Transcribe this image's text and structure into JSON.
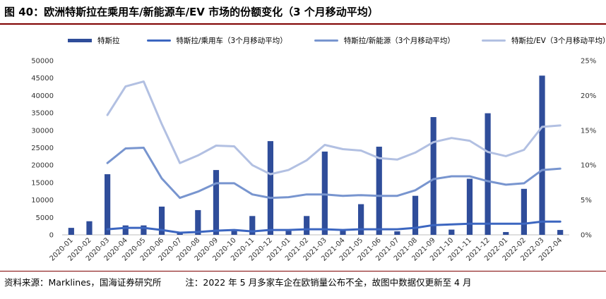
{
  "title": "图 40：欧洲特斯拉在乘用车/新能源车/EV 市场的份额变化（3 个月移动平均）",
  "source": "资料来源：Marklines，国海证券研究所",
  "note": "注：2022 年 5 月多家车企在欧销量公布不全，故图中数据仅更新至 4 月",
  "chart_data": {
    "type": "bar+line",
    "categories": [
      "2020-01",
      "2020-02",
      "2020-03",
      "2020-04",
      "2020-05",
      "2020-06",
      "2020-07",
      "2020-08",
      "2020-09",
      "2020-10",
      "2020-11",
      "2020-12",
      "2021-01",
      "2021-02",
      "2021-03",
      "2021-04",
      "2021-05",
      "2021-06",
      "2021-07",
      "2021-08",
      "2021-09",
      "2021-10",
      "2021-11",
      "2021-12",
      "2022-01",
      "2022-02",
      "2022-03",
      "2022-04"
    ],
    "ylim_left": [
      0,
      50000
    ],
    "yticks_left": [
      "0",
      "5000",
      "10000",
      "15000",
      "20000",
      "25000",
      "30000",
      "35000",
      "40000",
      "45000",
      "50000"
    ],
    "ylim_right": [
      0,
      25
    ],
    "yticks_right": [
      "0%",
      "5%",
      "10%",
      "15%",
      "20%",
      "25%"
    ],
    "legend_position": "top",
    "series": [
      {
        "name": "特斯拉",
        "kind": "bar",
        "axis": "left",
        "color": "#2f4d9a",
        "values": [
          2000,
          3900,
          17400,
          2700,
          2700,
          8100,
          800,
          7100,
          18600,
          1100,
          5400,
          26900,
          1100,
          5400,
          23900,
          1200,
          8800,
          25300,
          1000,
          11200,
          33800,
          1500,
          16100,
          34900,
          800,
          13200,
          45700,
          1400
        ]
      },
      {
        "name": "特斯拉/乘用车（3个月移动平均）",
        "kind": "line",
        "axis": "right",
        "color": "#3c66c0",
        "values": [
          null,
          null,
          0.8,
          1.0,
          1.0,
          0.7,
          0.3,
          0.4,
          0.6,
          0.7,
          0.5,
          0.7,
          0.7,
          0.8,
          0.8,
          0.7,
          0.8,
          0.8,
          0.8,
          1.0,
          1.4,
          1.5,
          1.6,
          1.6,
          1.6,
          1.6,
          1.9,
          1.9
        ]
      },
      {
        "name": "特斯拉/新能源（3个月移动平均）",
        "kind": "line",
        "axis": "right",
        "color": "#7895cf",
        "values": [
          null,
          null,
          10.3,
          12.4,
          12.5,
          8.1,
          5.3,
          6.2,
          7.4,
          7.4,
          5.8,
          5.3,
          5.4,
          5.8,
          5.8,
          5.6,
          5.7,
          5.6,
          5.6,
          6.4,
          8.0,
          8.4,
          8.4,
          7.7,
          7.2,
          7.4,
          9.3,
          9.5
        ]
      },
      {
        "name": "特斯拉/EV（3个月移动平均）",
        "kind": "line",
        "axis": "right",
        "color": "#b2c0e2",
        "values": [
          null,
          null,
          17.2,
          21.3,
          22.0,
          15.9,
          10.3,
          11.4,
          12.8,
          12.7,
          10.0,
          8.7,
          9.3,
          10.7,
          12.9,
          12.3,
          12.1,
          11.0,
          10.8,
          11.8,
          13.3,
          13.9,
          13.5,
          11.9,
          11.3,
          12.2,
          15.5,
          15.7
        ]
      }
    ]
  }
}
